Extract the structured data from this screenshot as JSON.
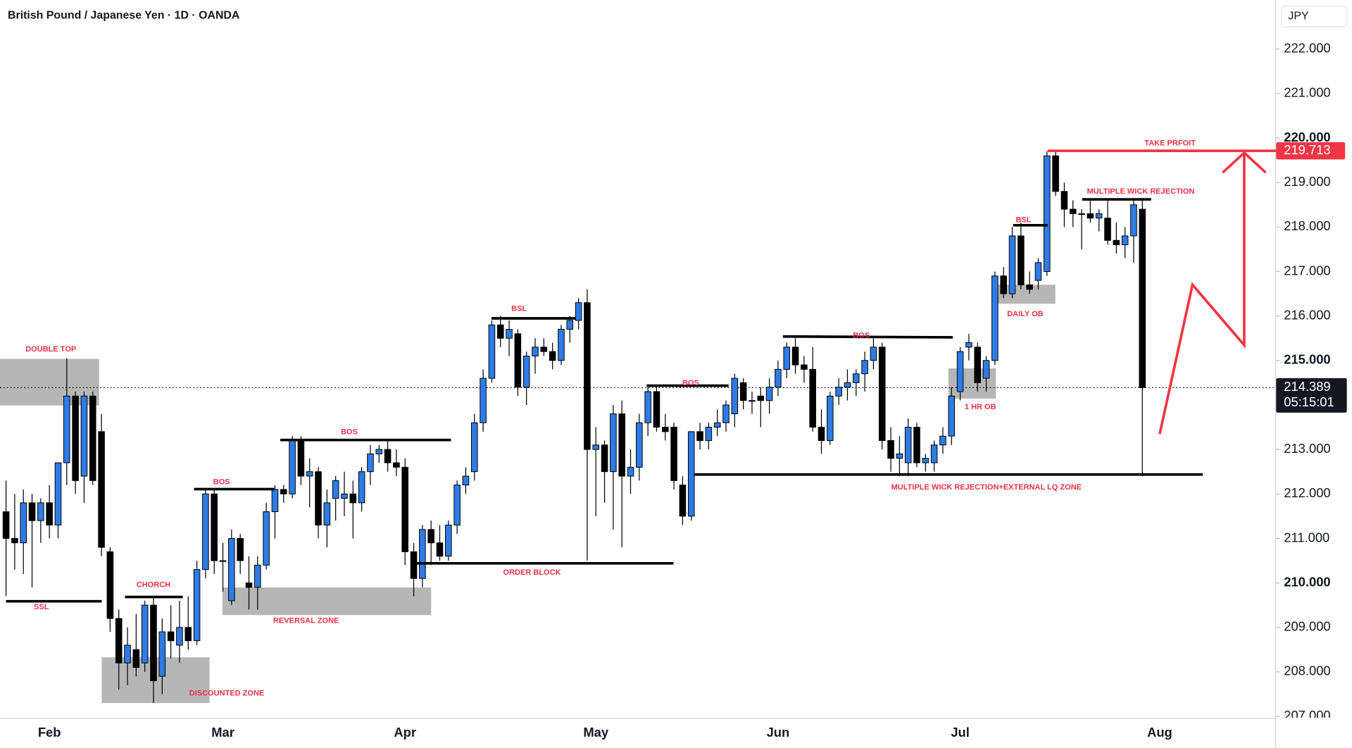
{
  "chart_data": {
    "type": "candlestick",
    "title": "British Pound / Japanese Yen · 1D · OANDA",
    "currency": "JPY",
    "up_color": "#2f7be6",
    "down_color": "#000000",
    "categories": [
      null,
      null,
      null,
      null,
      null,
      "Feb",
      null,
      null,
      null,
      null,
      null,
      null,
      null,
      null,
      null,
      null,
      null,
      null,
      null,
      null,
      null,
      null,
      null,
      null,
      null,
      "Mar",
      null,
      null,
      null,
      null,
      null,
      null,
      null,
      null,
      null,
      null,
      null,
      null,
      null,
      null,
      null,
      null,
      null,
      null,
      null,
      null,
      "Apr",
      null,
      null,
      null,
      null,
      null,
      null,
      null,
      null,
      null,
      null,
      null,
      null,
      null,
      null,
      null,
      null,
      null,
      null,
      null,
      null,
      null,
      "May",
      null,
      null,
      null,
      null,
      null,
      null,
      null,
      null,
      null,
      null,
      null,
      null,
      null,
      null,
      null,
      null,
      null,
      null,
      null,
      null,
      "Jun",
      null,
      null,
      null,
      null,
      null,
      null,
      null,
      null,
      null,
      null,
      null,
      null,
      null,
      null,
      null,
      null,
      null,
      null,
      null,
      null,
      "Jul",
      null,
      null,
      null,
      null,
      null,
      null,
      null,
      null,
      null,
      null,
      null,
      null,
      null,
      null,
      null,
      null,
      null,
      null,
      null,
      null,
      null,
      null,
      "Aug",
      null,
      null,
      null,
      null,
      null,
      null,
      null,
      null,
      null,
      null,
      null,
      null,
      null
    ],
    "open": [
      211.6,
      211.0,
      210.9,
      211.8,
      211.4,
      211.8,
      211.3,
      212.7,
      214.2,
      212.4,
      214.2,
      213.4,
      210.7,
      209.2,
      208.2,
      208.5,
      208.2,
      209.5,
      207.9,
      208.9,
      208.6,
      209.0,
      208.7,
      210.3,
      212.0,
      210.5,
      209.6,
      211.0,
      210.0,
      209.9,
      210.4,
      211.6,
      212.1,
      212.0,
      213.2,
      212.4,
      212.5,
      211.3,
      211.9,
      211.9,
      212.0,
      211.8,
      212.5,
      212.9,
      213.0,
      212.7,
      212.6,
      210.7,
      210.1,
      211.2,
      210.9,
      210.6,
      211.3,
      212.2,
      212.5,
      213.6,
      214.6,
      215.8,
      215.5,
      215.6,
      214.4,
      215.1,
      215.3,
      215.2,
      215.0,
      215.7,
      215.9,
      216.3,
      213.0,
      213.1,
      212.5,
      213.8,
      212.4,
      212.6,
      213.6,
      214.3,
      213.5,
      213.5,
      212.2,
      211.5,
      213.4,
      213.2,
      213.5,
      213.6,
      213.8,
      214.5,
      214.1,
      214.2,
      214.1,
      214.4,
      214.8,
      215.3,
      214.9,
      214.8,
      213.5,
      213.2,
      214.2,
      214.4,
      214.5,
      214.7,
      215.0,
      215.3,
      213.2,
      212.8,
      212.7,
      213.5,
      212.7,
      212.7,
      213.1,
      213.3,
      214.3,
      215.3,
      215.3,
      214.6,
      215.0,
      216.9,
      216.5,
      217.8,
      216.7,
      216.8,
      217.0,
      219.6,
      218.8,
      218.4,
      218.3,
      218.3,
      218.2,
      218.2,
      217.7,
      217.6,
      217.8,
      218.4,
      null,
      null,
      null,
      null,
      null,
      null,
      null,
      null,
      null,
      null,
      null,
      null,
      null,
      null,
      null
    ],
    "high": [
      212.3,
      212.0,
      212.1,
      212.0,
      211.9,
      212.2,
      212.7,
      215.05,
      214.3,
      214.3,
      214.3,
      213.8,
      210.8,
      209.4,
      209.0,
      209.3,
      209.6,
      209.7,
      209.2,
      209.5,
      209.6,
      209.7,
      210.5,
      212.1,
      212.1,
      210.9,
      211.2,
      211.1,
      210.6,
      210.6,
      211.8,
      212.2,
      212.2,
      213.3,
      213.3,
      212.8,
      212.6,
      212.1,
      212.4,
      212.5,
      212.3,
      212.6,
      213.1,
      213.1,
      213.2,
      213.0,
      212.8,
      210.9,
      211.3,
      211.4,
      211.3,
      211.4,
      212.3,
      212.6,
      213.8,
      214.8,
      215.9,
      216.0,
      215.9,
      215.7,
      215.2,
      215.5,
      215.5,
      215.4,
      215.8,
      216.0,
      216.4,
      216.6,
      213.5,
      213.2,
      214.0,
      214.1,
      213.0,
      213.8,
      214.4,
      214.4,
      213.8,
      213.6,
      212.4,
      213.4,
      213.6,
      213.6,
      213.9,
      214.1,
      214.7,
      214.6,
      214.3,
      214.4,
      214.6,
      215.0,
      215.4,
      215.5,
      215.1,
      215.3,
      213.9,
      214.3,
      214.6,
      214.8,
      214.8,
      215.2,
      215.5,
      215.4,
      213.5,
      213.3,
      213.7,
      213.6,
      212.9,
      213.2,
      213.5,
      214.4,
      215.3,
      215.6,
      215.4,
      215.1,
      217.0,
      217.1,
      218.0,
      218.1,
      217.0,
      217.3,
      219.7,
      219.7,
      219.0,
      218.6,
      218.4,
      218.6,
      218.4,
      218.6,
      218.1,
      218.0,
      218.6,
      218.6,
      null,
      null,
      null,
      null,
      null,
      null,
      null,
      null,
      null,
      null,
      null,
      null,
      null,
      null,
      null
    ],
    "low": [
      209.7,
      210.3,
      210.2,
      209.9,
      210.9,
      211.0,
      211.0,
      212.2,
      212.0,
      211.8,
      212.2,
      210.6,
      208.9,
      207.6,
      207.7,
      207.9,
      208.0,
      207.3,
      207.5,
      208.3,
      208.2,
      208.5,
      208.6,
      210.1,
      210.2,
      209.8,
      209.5,
      210.2,
      209.4,
      209.4,
      210.3,
      211.0,
      211.8,
      211.9,
      212.2,
      211.7,
      211.0,
      210.8,
      211.4,
      211.5,
      211.0,
      211.6,
      212.2,
      212.7,
      212.5,
      212.4,
      210.4,
      209.7,
      209.9,
      210.4,
      210.5,
      210.5,
      211.1,
      212.0,
      212.3,
      213.4,
      214.5,
      215.3,
      215.1,
      214.2,
      214.0,
      214.7,
      215.1,
      214.8,
      214.9,
      215.4,
      215.7,
      210.5,
      211.5,
      211.8,
      211.2,
      210.8,
      212.0,
      212.3,
      213.3,
      213.4,
      213.2,
      212.1,
      211.3,
      211.4,
      213.0,
      213.0,
      213.3,
      213.4,
      213.5,
      213.9,
      213.8,
      213.5,
      213.8,
      214.2,
      214.6,
      214.7,
      214.5,
      213.4,
      212.9,
      213.1,
      214.0,
      214.1,
      214.2,
      214.3,
      214.8,
      213.0,
      212.5,
      212.4,
      212.4,
      212.6,
      212.5,
      212.5,
      212.9,
      213.1,
      214.1,
      215.0,
      214.3,
      214.3,
      214.9,
      216.4,
      216.4,
      216.6,
      216.5,
      216.6,
      216.9,
      218.7,
      218.0,
      218.0,
      217.5,
      218.1,
      217.9,
      217.6,
      217.4,
      217.3,
      217.2,
      212.4,
      null,
      null,
      null,
      null,
      null,
      null,
      null,
      null,
      null,
      null,
      null,
      null,
      null,
      null,
      null
    ],
    "close": [
      211.0,
      210.9,
      211.8,
      211.4,
      211.8,
      211.3,
      212.7,
      214.2,
      212.3,
      214.2,
      212.3,
      210.8,
      209.2,
      208.2,
      208.6,
      208.1,
      209.5,
      207.8,
      208.9,
      208.7,
      209.0,
      208.7,
      210.3,
      212.0,
      210.5,
      210.5,
      211.0,
      210.5,
      209.9,
      210.4,
      211.6,
      212.1,
      212.0,
      213.2,
      212.4,
      212.5,
      211.3,
      211.8,
      212.3,
      212.0,
      211.8,
      212.5,
      212.9,
      213.0,
      212.7,
      212.6,
      210.7,
      210.1,
      211.2,
      210.9,
      210.6,
      211.3,
      212.2,
      212.4,
      213.6,
      214.6,
      215.8,
      215.5,
      215.7,
      214.4,
      215.1,
      215.3,
      215.2,
      215.0,
      215.7,
      215.9,
      216.3,
      213.0,
      213.1,
      212.5,
      213.8,
      212.4,
      212.6,
      213.6,
      214.3,
      213.5,
      213.4,
      212.3,
      211.5,
      213.4,
      213.2,
      213.5,
      213.6,
      214.0,
      214.6,
      214.1,
      214.1,
      214.1,
      214.4,
      214.8,
      215.3,
      214.9,
      214.8,
      213.5,
      213.2,
      214.2,
      214.4,
      214.5,
      214.7,
      215.0,
      215.3,
      213.2,
      212.8,
      212.9,
      213.5,
      212.7,
      212.8,
      213.1,
      213.3,
      214.2,
      215.2,
      215.4,
      214.5,
      215.0,
      216.9,
      216.5,
      217.8,
      216.7,
      216.6,
      217.2,
      219.6,
      218.8,
      218.4,
      218.3,
      218.3,
      218.2,
      218.3,
      217.7,
      217.6,
      217.8,
      218.5,
      214.389,
      null,
      null,
      null,
      null,
      null,
      null,
      null,
      null,
      null,
      null,
      null,
      null,
      null,
      null,
      null
    ],
    "ylim": [
      206.97,
      223.1
    ],
    "yticks": [
      {
        "value": 207,
        "label": "207.000"
      },
      {
        "value": 208,
        "label": "208.000"
      },
      {
        "value": 209,
        "label": "209.000"
      },
      {
        "value": 210,
        "label": "210.000"
      },
      {
        "value": 211,
        "label": "211.000"
      },
      {
        "value": 212,
        "label": "212.000"
      },
      {
        "value": 213,
        "label": "213.000"
      },
      {
        "value": 214,
        "label": "214.000"
      },
      {
        "value": 215,
        "label": "215.000"
      },
      {
        "value": 216,
        "label": "216.000"
      },
      {
        "value": 217,
        "label": "217.000"
      },
      {
        "value": 218,
        "label": "218.000"
      },
      {
        "value": 219,
        "label": "219.000"
      },
      {
        "value": 220,
        "label": "220.000"
      },
      {
        "value": 221,
        "label": "221.000"
      },
      {
        "value": 222,
        "label": "222.000"
      }
    ],
    "last_price": 214.389,
    "countdown": "05:15:01",
    "take_profit": 219.713,
    "take_profit_color": "#f23645",
    "annotations": [
      "DOUBLE TOP",
      "SSL",
      "CHORCH",
      "DISCOUNTED ZONE",
      "BOS",
      "REVERSAL ZONE",
      "BOS",
      "ORDER BLOCK",
      "BSL",
      "BOS",
      "BOS",
      "MULTIPLE WICK REJECTION+EXTERNAL LQ ZONE",
      "1 HR OB",
      "DAILY OB",
      "BSL",
      "TAKE PRFOIT",
      "MULTIPLE WICK REJECTION"
    ]
  }
}
